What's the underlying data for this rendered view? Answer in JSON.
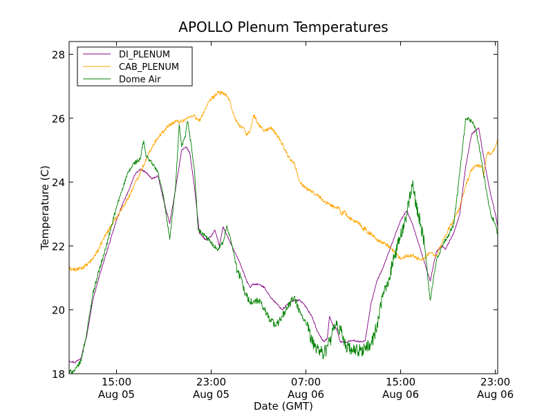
{
  "chart_data": {
    "type": "line",
    "title": "APOLLO Plenum Temperatures",
    "xlabel": "Date (GMT)",
    "ylabel": "Temperature (C)",
    "x_unit": "hours since Aug 05 00:00 GMT",
    "xlim": [
      11.0,
      47.2
    ],
    "ylim": [
      18,
      28.4
    ],
    "y_ticks": [
      18,
      20,
      22,
      24,
      26,
      28
    ],
    "y_tick_labels": [
      "18",
      "20",
      "22",
      "24",
      "26",
      "28"
    ],
    "x_ticks": [
      15,
      23,
      31,
      39,
      47
    ],
    "x_tick_labels": [
      [
        "15:00",
        "Aug 05"
      ],
      [
        "23:00",
        "Aug 05"
      ],
      [
        "07:00",
        "Aug 06"
      ],
      [
        "15:00",
        "Aug 06"
      ],
      [
        "23:00",
        "Aug 06"
      ]
    ],
    "grid": false,
    "legend_position": "upper-left",
    "series": [
      {
        "name": "DI_PLENUM",
        "color": "#800080",
        "x": [
          11.0,
          11.5,
          12.0,
          12.5,
          13.0,
          13.5,
          14.0,
          14.5,
          15.0,
          15.5,
          16.0,
          16.5,
          17.0,
          17.5,
          18.0,
          18.5,
          19.0,
          19.5,
          20.0,
          20.5,
          20.9,
          21.2,
          21.6,
          22.0,
          22.5,
          23.0,
          23.3,
          23.7,
          24.0,
          24.5,
          25.0,
          25.5,
          26.0,
          26.3,
          26.5,
          27.0,
          27.5,
          28.0,
          28.5,
          29.0,
          29.5,
          30.0,
          30.5,
          31.0,
          31.5,
          32.0,
          32.5,
          32.8,
          33.0,
          33.3,
          33.6,
          33.9,
          34.2,
          34.5,
          35.0,
          35.5,
          36.0,
          36.5,
          37.0,
          37.5,
          38.0,
          38.5,
          39.0,
          39.5,
          40.0,
          40.5,
          41.0,
          41.5,
          42.0,
          42.5,
          42.8,
          43.2,
          43.5,
          44.0,
          44.5,
          45.0,
          45.3,
          45.6,
          46.0,
          46.5,
          47.0,
          47.2
        ],
        "y": [
          18.4,
          18.35,
          18.5,
          19.2,
          20.3,
          21.0,
          21.6,
          22.2,
          22.8,
          23.3,
          23.7,
          24.2,
          24.4,
          24.3,
          24.1,
          24.2,
          23.4,
          22.7,
          23.8,
          25.0,
          25.1,
          24.9,
          23.8,
          22.4,
          22.2,
          22.3,
          22.5,
          22.0,
          22.6,
          22.2,
          21.8,
          21.4,
          20.9,
          20.7,
          20.8,
          20.8,
          20.7,
          20.4,
          20.2,
          20.0,
          20.2,
          20.3,
          20.3,
          20.1,
          19.8,
          19.3,
          19.0,
          19.1,
          19.8,
          19.5,
          19.4,
          19.0,
          18.98,
          19.0,
          19.05,
          19.0,
          19.02,
          20.2,
          20.9,
          21.3,
          21.8,
          22.3,
          22.8,
          23.1,
          22.7,
          22.1,
          21.5,
          20.9,
          21.8,
          22.0,
          21.9,
          22.2,
          22.4,
          23.0,
          24.5,
          25.5,
          25.6,
          25.7,
          24.8,
          23.8,
          23.0,
          22.6
        ]
      },
      {
        "name": "CAB_PLENUM",
        "color": "#ffa500",
        "x": [
          11.0,
          11.5,
          12.0,
          12.5,
          13.0,
          13.5,
          14.0,
          14.5,
          15.0,
          15.5,
          16.0,
          16.5,
          17.0,
          17.5,
          18.0,
          18.5,
          19.0,
          19.5,
          20.0,
          20.5,
          21.0,
          21.5,
          22.0,
          22.5,
          23.0,
          23.3,
          23.6,
          24.0,
          24.5,
          25.0,
          25.3,
          25.7,
          26.0,
          26.3,
          26.6,
          27.0,
          27.5,
          28.0,
          28.5,
          29.0,
          29.5,
          30.0,
          30.5,
          31.0,
          31.5,
          32.0,
          32.5,
          33.0,
          33.5,
          33.8,
          34.0,
          34.3,
          34.5,
          35.0,
          35.5,
          35.9,
          36.0,
          36.2,
          36.5,
          37.0,
          37.5,
          38.0,
          38.5,
          39.0,
          39.5,
          40.0,
          40.5,
          41.0,
          41.5,
          42.0,
          42.5,
          43.0,
          43.5,
          44.0,
          44.5,
          45.0,
          45.3,
          45.6,
          45.9,
          46.0,
          46.3,
          46.6,
          46.9,
          47.0,
          47.2
        ],
        "y": [
          21.3,
          21.25,
          21.3,
          21.4,
          21.6,
          21.9,
          22.3,
          22.6,
          22.9,
          23.2,
          23.5,
          23.9,
          24.3,
          24.7,
          25.1,
          25.4,
          25.6,
          25.8,
          25.9,
          25.9,
          26.0,
          26.1,
          25.9,
          26.3,
          26.6,
          26.7,
          26.8,
          26.8,
          26.6,
          26.0,
          25.8,
          25.7,
          25.5,
          25.6,
          26.1,
          25.8,
          25.6,
          25.7,
          25.5,
          25.2,
          24.8,
          24.6,
          24.0,
          23.8,
          23.7,
          23.6,
          23.4,
          23.3,
          23.2,
          23.2,
          23.0,
          23.1,
          22.9,
          22.8,
          22.7,
          22.5,
          22.6,
          22.4,
          22.4,
          22.2,
          22.1,
          22.0,
          21.8,
          21.6,
          21.7,
          21.7,
          21.6,
          21.6,
          21.8,
          21.7,
          22.1,
          22.5,
          22.8,
          23.2,
          23.9,
          24.4,
          24.5,
          24.5,
          24.5,
          24.2,
          24.9,
          24.9,
          25.0,
          25.1,
          25.3
        ]
      },
      {
        "name": "Dome Air",
        "color": "#008000",
        "x": [
          11.0,
          11.5,
          12.0,
          12.5,
          13.0,
          13.5,
          14.0,
          14.5,
          15.0,
          15.5,
          16.0,
          16.5,
          17.0,
          17.3,
          17.5,
          17.8,
          18.0,
          18.5,
          19.0,
          19.5,
          20.0,
          20.3,
          20.5,
          20.8,
          21.0,
          21.3,
          21.6,
          21.9,
          22.2,
          22.5,
          23.0,
          23.5,
          24.0,
          24.3,
          24.6,
          24.9,
          25.2,
          25.5,
          26.0,
          26.5,
          27.0,
          27.5,
          28.0,
          28.5,
          29.0,
          29.5,
          30.0,
          30.5,
          31.0,
          31.5,
          32.0,
          32.5,
          33.0,
          33.5,
          34.0,
          34.5,
          35.0,
          35.5,
          36.0,
          36.5,
          37.0,
          37.5,
          38.0,
          38.5,
          39.0,
          39.5,
          40.0,
          40.5,
          41.0,
          41.5,
          42.0,
          42.5,
          43.0,
          43.5,
          44.0,
          44.5,
          45.0,
          45.3,
          45.6,
          45.9,
          46.3,
          46.6,
          47.0,
          47.2
        ],
        "y": [
          18.05,
          18.1,
          18.4,
          19.3,
          20.5,
          21.2,
          21.8,
          22.5,
          23.2,
          23.8,
          24.3,
          24.6,
          24.7,
          25.3,
          24.8,
          24.7,
          24.6,
          24.3,
          23.5,
          22.2,
          23.9,
          25.8,
          25.1,
          25.4,
          25.9,
          25.2,
          24.3,
          22.5,
          22.4,
          22.3,
          22.1,
          21.9,
          22.1,
          22.6,
          22.3,
          21.8,
          21.2,
          21.0,
          20.4,
          20.2,
          20.3,
          20.0,
          19.7,
          19.5,
          19.8,
          20.1,
          20.4,
          19.9,
          19.6,
          19.0,
          18.8,
          18.6,
          19.0,
          19.5,
          19.3,
          18.8,
          18.7,
          18.7,
          18.8,
          18.9,
          19.5,
          20.4,
          21.0,
          21.7,
          22.3,
          23.0,
          23.9,
          23.0,
          22.1,
          20.3,
          21.5,
          22.0,
          22.3,
          22.7,
          24.3,
          26.0,
          25.9,
          25.7,
          25.2,
          24.5,
          23.6,
          23.0,
          22.7,
          22.35
        ]
      }
    ]
  }
}
